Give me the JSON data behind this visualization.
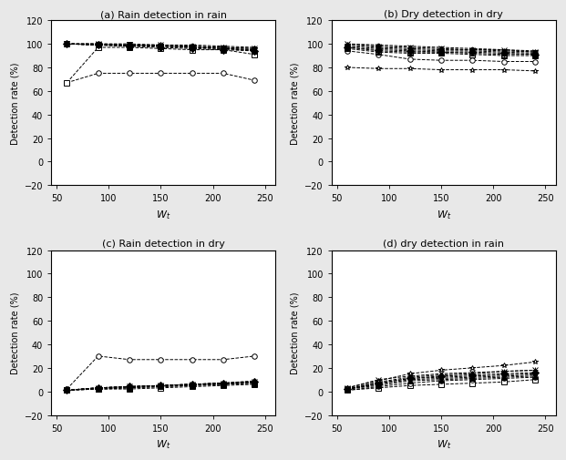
{
  "x": [
    60,
    90,
    120,
    150,
    180,
    210,
    240
  ],
  "subplot_titles": [
    "(a) Rain detection in rain",
    "(b) Dry detection in dry",
    "(c) Rain detection in dry",
    "(d) dry detection in rain"
  ],
  "ylabel": "Detection rate (%)",
  "xlabel": "W_t",
  "ylim": [
    -20,
    120
  ],
  "yticks": [
    -20,
    0,
    20,
    40,
    60,
    80,
    100,
    120
  ],
  "xticks": [
    50,
    100,
    150,
    200,
    250
  ],
  "xlim": [
    45,
    260
  ],
  "series": {
    "a": [
      {
        "marker": "o",
        "values": [
          67,
          75,
          75,
          75,
          75,
          75,
          69
        ],
        "mfc": "white",
        "mec": "black"
      },
      {
        "marker": "s",
        "values": [
          67,
          97,
          97,
          96,
          95,
          95,
          91
        ],
        "mfc": "white",
        "mec": "black"
      },
      {
        "marker": "^",
        "values": [
          100,
          99,
          98,
          98,
          97,
          96,
          94
        ],
        "mfc": "black",
        "mec": "black"
      },
      {
        "marker": "v",
        "values": [
          100,
          99,
          99,
          98,
          97,
          96,
          95
        ],
        "mfc": "black",
        "mec": "black"
      },
      {
        "marker": "D",
        "values": [
          100,
          99,
          98,
          97,
          96,
          95,
          94
        ],
        "mfc": "black",
        "mec": "black"
      },
      {
        "marker": "+",
        "values": [
          100,
          99,
          99,
          98,
          97,
          96,
          95
        ],
        "mfc": "black",
        "mec": "black"
      },
      {
        "marker": "*",
        "values": [
          100,
          100,
          99,
          99,
          98,
          97,
          96
        ],
        "mfc": "black",
        "mec": "black"
      },
      {
        "marker": "x",
        "values": [
          100,
          100,
          99,
          99,
          98,
          97,
          96
        ],
        "mfc": "black",
        "mec": "black"
      },
      {
        "marker": ".",
        "values": [
          100,
          100,
          100,
          99,
          99,
          98,
          97
        ],
        "mfc": "black",
        "mec": "black"
      }
    ],
    "b": [
      {
        "marker": "*",
        "values": [
          80,
          79,
          79,
          78,
          78,
          78,
          77
        ],
        "mfc": "white",
        "mec": "black"
      },
      {
        "marker": "o",
        "values": [
          94,
          91,
          87,
          86,
          86,
          85,
          85
        ],
        "mfc": "white",
        "mec": "black"
      },
      {
        "marker": "s",
        "values": [
          96,
          93,
          92,
          92,
          91,
          90,
          90
        ],
        "mfc": "white",
        "mec": "black"
      },
      {
        "marker": "^",
        "values": [
          97,
          94,
          93,
          93,
          92,
          91,
          91
        ],
        "mfc": "white",
        "mec": "black"
      },
      {
        "marker": "D",
        "values": [
          97,
          95,
          94,
          93,
          93,
          92,
          91
        ],
        "mfc": "black",
        "mec": "black"
      },
      {
        "marker": "v",
        "values": [
          98,
          96,
          95,
          94,
          94,
          93,
          92
        ],
        "mfc": "black",
        "mec": "black"
      },
      {
        "marker": "+",
        "values": [
          99,
          97,
          96,
          95,
          95,
          94,
          93
        ],
        "mfc": "black",
        "mec": "black"
      },
      {
        "marker": "x",
        "values": [
          100,
          98,
          97,
          96,
          95,
          95,
          93
        ],
        "mfc": "black",
        "mec": "black"
      },
      {
        "marker": ".",
        "values": [
          100,
          99,
          98,
          97,
          96,
          95,
          94
        ],
        "mfc": "black",
        "mec": "black"
      }
    ],
    "c": [
      {
        "marker": "o",
        "values": [
          2,
          30,
          27,
          27,
          27,
          27,
          30
        ],
        "mfc": "white",
        "mec": "black"
      },
      {
        "marker": "s",
        "values": [
          1,
          2,
          2,
          3,
          4,
          5,
          6
        ],
        "mfc": "white",
        "mec": "black"
      },
      {
        "marker": "^",
        "values": [
          1,
          2,
          3,
          4,
          5,
          6,
          7
        ],
        "mfc": "black",
        "mec": "black"
      },
      {
        "marker": "v",
        "values": [
          1,
          2,
          3,
          4,
          5,
          6,
          7
        ],
        "mfc": "black",
        "mec": "black"
      },
      {
        "marker": "D",
        "values": [
          1,
          3,
          4,
          5,
          6,
          7,
          8
        ],
        "mfc": "black",
        "mec": "black"
      },
      {
        "marker": "+",
        "values": [
          1,
          3,
          4,
          5,
          6,
          7,
          8
        ],
        "mfc": "black",
        "mec": "black"
      },
      {
        "marker": "*",
        "values": [
          1,
          3,
          4,
          5,
          6,
          7,
          8
        ],
        "mfc": "black",
        "mec": "black"
      },
      {
        "marker": "x",
        "values": [
          1,
          3,
          4,
          5,
          6,
          7,
          8
        ],
        "mfc": "black",
        "mec": "black"
      },
      {
        "marker": ".",
        "values": [
          1,
          3,
          4,
          5,
          6,
          7,
          9
        ],
        "mfc": "black",
        "mec": "black"
      }
    ],
    "d": [
      {
        "marker": "s",
        "values": [
          1,
          3,
          5,
          6,
          7,
          8,
          10
        ],
        "mfc": "white",
        "mec": "black"
      },
      {
        "marker": "o",
        "values": [
          1,
          4,
          7,
          9,
          10,
          11,
          12
        ],
        "mfc": "white",
        "mec": "black"
      },
      {
        "marker": "^",
        "values": [
          2,
          5,
          9,
          10,
          11,
          12,
          13
        ],
        "mfc": "black",
        "mec": "black"
      },
      {
        "marker": "v",
        "values": [
          2,
          6,
          10,
          11,
          12,
          13,
          14
        ],
        "mfc": "black",
        "mec": "black"
      },
      {
        "marker": "D",
        "values": [
          2,
          7,
          11,
          13,
          14,
          15,
          16
        ],
        "mfc": "black",
        "mec": "black"
      },
      {
        "marker": "+",
        "values": [
          2,
          8,
          12,
          14,
          15,
          17,
          18
        ],
        "mfc": "black",
        "mec": "black"
      },
      {
        "marker": "*",
        "values": [
          3,
          9,
          15,
          18,
          20,
          22,
          25
        ],
        "mfc": "white",
        "mec": "black"
      },
      {
        "marker": "x",
        "values": [
          3,
          10,
          13,
          15,
          16,
          17,
          18
        ],
        "mfc": "black",
        "mec": "black"
      },
      {
        "marker": ".",
        "values": [
          2,
          7,
          11,
          12,
          13,
          14,
          15
        ],
        "mfc": "black",
        "mec": "black"
      }
    ]
  },
  "line_color": "black",
  "marker_size": 4,
  "line_width": 0.7,
  "title_fontsize": 8,
  "axis_label_fontsize": 7,
  "tick_fontsize": 7,
  "fig_bg": "#e8e8e8",
  "ax_bg": "white"
}
